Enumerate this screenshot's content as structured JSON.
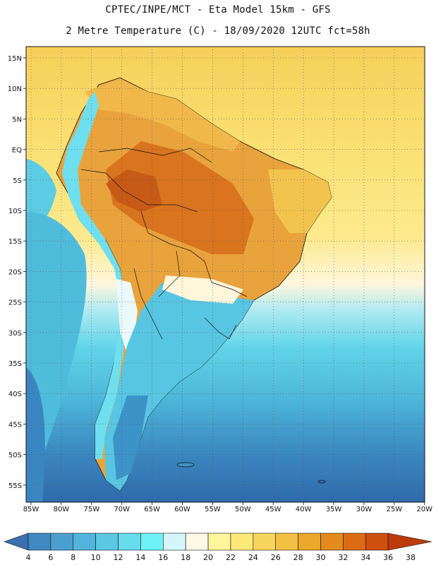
{
  "header": {
    "line1": "CPTEC/INPE/MCT -  Eta Model 15km - GFS",
    "line2": "2 Metre Temperature (C) - 18/09/2020 12UTC fct=58h"
  },
  "map": {
    "lat_labels": [
      "15N",
      "10N",
      "5N",
      "EQ",
      "5S",
      "10S",
      "15S",
      "20S",
      "25S",
      "30S",
      "35S",
      "40S",
      "45S",
      "50S",
      "55S"
    ],
    "lon_labels": [
      "85W",
      "80W",
      "75W",
      "70W",
      "65W",
      "60W",
      "55W",
      "50W",
      "45W",
      "40W",
      "35W",
      "30W",
      "25W",
      "20W"
    ]
  },
  "colorbar": {
    "labels": [
      "4",
      "6",
      "8",
      "10",
      "12",
      "14",
      "16",
      "18",
      "20",
      "22",
      "24",
      "26",
      "28",
      "30",
      "32",
      "34",
      "36",
      "38"
    ],
    "colors": [
      "#3a6fb0",
      "#3f88c2",
      "#4a9fcf",
      "#52b4dc",
      "#5cc8e4",
      "#66dcec",
      "#6ef2f6",
      "#d4f6fb",
      "#fff8e6",
      "#fff59a",
      "#fde97a",
      "#f8d55c",
      "#f2c043",
      "#eba82a",
      "#e58a1d",
      "#dc6b14",
      "#cf4f0e",
      "#bd3a0a"
    ]
  }
}
